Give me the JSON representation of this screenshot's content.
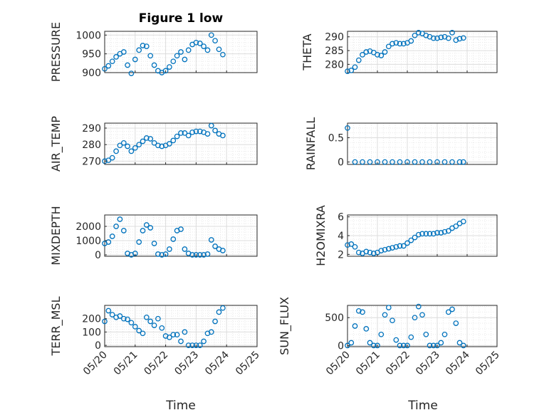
{
  "figure": {
    "title": "Figure 1 low",
    "x_axis_label": "Time",
    "date_ticks": [
      "05/20",
      "05/21",
      "05/22",
      "05/23",
      "05/24",
      "05/25"
    ],
    "marker_color": "#0072BD"
  },
  "chart_data": [
    {
      "type": "scatter",
      "title": "Figure 1 low",
      "ylabel": "PRESSURE",
      "xlabel": "",
      "xlim": [
        "2024-05-20",
        "2024-05-25"
      ],
      "ylim": [
        900,
        1010
      ],
      "yticks": [
        900,
        950,
        1000
      ],
      "x": [
        "05/20 00:00",
        "05/20 03:00",
        "05/20 06:00",
        "05/20 09:00",
        "05/20 12:00",
        "05/20 15:00",
        "05/20 18:00",
        "05/20 21:00",
        "05/21 00:00",
        "05/21 03:00",
        "05/21 06:00",
        "05/21 09:00",
        "05/21 12:00",
        "05/21 15:00",
        "05/21 18:00",
        "05/21 21:00",
        "05/22 00:00",
        "05/22 03:00",
        "05/22 06:00",
        "05/22 09:00",
        "05/22 12:00",
        "05/22 15:00",
        "05/22 18:00",
        "05/22 21:00",
        "05/23 00:00",
        "05/23 03:00",
        "05/23 06:00",
        "05/23 09:00",
        "05/23 12:00",
        "05/23 15:00",
        "05/23 18:00",
        "05/23 21:00"
      ],
      "y": [
        910,
        918,
        930,
        942,
        950,
        955,
        920,
        898,
        935,
        960,
        972,
        970,
        945,
        920,
        905,
        900,
        905,
        915,
        930,
        945,
        955,
        935,
        960,
        975,
        980,
        978,
        970,
        960,
        1000,
        985,
        962,
        948
      ]
    },
    {
      "type": "scatter",
      "ylabel": "THETA",
      "xlabel": "",
      "xlim": [
        "2024-05-20",
        "2024-05-25"
      ],
      "ylim": [
        277,
        292
      ],
      "yticks": [
        280,
        285,
        290
      ],
      "x": [
        "05/20 00:00",
        "05/20 03:00",
        "05/20 06:00",
        "05/20 09:00",
        "05/20 12:00",
        "05/20 15:00",
        "05/20 18:00",
        "05/20 21:00",
        "05/21 00:00",
        "05/21 03:00",
        "05/21 06:00",
        "05/21 09:00",
        "05/21 12:00",
        "05/21 15:00",
        "05/21 18:00",
        "05/21 21:00",
        "05/22 00:00",
        "05/22 03:00",
        "05/22 06:00",
        "05/22 09:00",
        "05/22 12:00",
        "05/22 15:00",
        "05/22 18:00",
        "05/22 21:00",
        "05/23 00:00",
        "05/23 03:00",
        "05/23 06:00",
        "05/23 09:00",
        "05/23 12:00",
        "05/23 15:00",
        "05/23 18:00",
        "05/23 21:00"
      ],
      "y": [
        277.5,
        277.8,
        279,
        281.5,
        283.5,
        284.5,
        284.8,
        284.3,
        283.5,
        283.2,
        284.5,
        286.5,
        287.5,
        287.8,
        287.5,
        287.5,
        287.8,
        288.5,
        290.5,
        291.5,
        291.2,
        290.5,
        290,
        289.5,
        289.5,
        289.8,
        290,
        289.5,
        291.5,
        288.8,
        289.3,
        289.6
      ]
    },
    {
      "type": "scatter",
      "ylabel": "AIR_TEMP",
      "xlabel": "",
      "xlim": [
        "2024-05-20",
        "2024-05-25"
      ],
      "ylim": [
        268,
        293
      ],
      "yticks": [
        270,
        280,
        290
      ],
      "x": [
        "05/20 00:00",
        "05/20 03:00",
        "05/20 06:00",
        "05/20 09:00",
        "05/20 12:00",
        "05/20 15:00",
        "05/20 18:00",
        "05/20 21:00",
        "05/21 00:00",
        "05/21 03:00",
        "05/21 06:00",
        "05/21 09:00",
        "05/21 12:00",
        "05/21 15:00",
        "05/21 18:00",
        "05/21 21:00",
        "05/22 00:00",
        "05/22 03:00",
        "05/22 06:00",
        "05/22 09:00",
        "05/22 12:00",
        "05/22 15:00",
        "05/22 18:00",
        "05/22 21:00",
        "05/23 00:00",
        "05/23 03:00",
        "05/23 06:00",
        "05/23 09:00",
        "05/23 12:00",
        "05/23 15:00",
        "05/23 18:00",
        "05/23 21:00"
      ],
      "y": [
        270,
        270.5,
        272,
        276,
        279.5,
        281,
        279,
        276,
        278,
        280,
        282,
        284,
        283.5,
        281,
        279.5,
        279,
        279.5,
        280.5,
        282.5,
        285,
        287,
        287,
        285.5,
        287.5,
        288,
        288,
        287.5,
        286.5,
        291.5,
        288.5,
        286.5,
        285.5
      ]
    },
    {
      "type": "scatter",
      "ylabel": "RAINFALL",
      "xlabel": "",
      "xlim": [
        "2024-05-20",
        "2024-05-25"
      ],
      "ylim": [
        -0.05,
        0.8
      ],
      "yticks": [
        0,
        0.5
      ],
      "x": [
        "05/20 00:00",
        "05/20 06:00",
        "05/20 12:00",
        "05/20 18:00",
        "05/21 00:00",
        "05/21 06:00",
        "05/21 12:00",
        "05/21 18:00",
        "05/22 00:00",
        "05/22 06:00",
        "05/22 12:00",
        "05/22 18:00",
        "05/23 00:00",
        "05/23 06:00",
        "05/23 12:00",
        "05/23 18:00",
        "05/23 21:00"
      ],
      "y": [
        0.7,
        0,
        0,
        0,
        0,
        0,
        0,
        0,
        0,
        0,
        0,
        0,
        0,
        0,
        0,
        0,
        0
      ]
    },
    {
      "type": "scatter",
      "ylabel": "MIXDEPTH",
      "xlabel": "",
      "xlim": [
        "2024-05-20",
        "2024-05-25"
      ],
      "ylim": [
        -100,
        2800
      ],
      "yticks": [
        0,
        1000,
        2000
      ],
      "x": [
        "05/20 00:00",
        "05/20 03:00",
        "05/20 06:00",
        "05/20 09:00",
        "05/20 12:00",
        "05/20 15:00",
        "05/20 18:00",
        "05/20 21:00",
        "05/21 00:00",
        "05/21 03:00",
        "05/21 06:00",
        "05/21 09:00",
        "05/21 12:00",
        "05/21 15:00",
        "05/21 18:00",
        "05/21 21:00",
        "05/22 00:00",
        "05/22 03:00",
        "05/22 06:00",
        "05/22 09:00",
        "05/22 12:00",
        "05/22 15:00",
        "05/22 18:00",
        "05/22 21:00",
        "05/23 00:00",
        "05/23 03:00",
        "05/23 06:00",
        "05/23 09:00",
        "05/23 12:00",
        "05/23 15:00",
        "05/23 18:00",
        "05/23 21:00"
      ],
      "y": [
        800,
        900,
        1300,
        2000,
        2500,
        1700,
        100,
        0,
        100,
        900,
        1700,
        2100,
        1900,
        800,
        50,
        0,
        50,
        400,
        1100,
        1700,
        1800,
        400,
        100,
        0,
        0,
        0,
        0,
        50,
        1050,
        600,
        400,
        300
      ]
    },
    {
      "type": "scatter",
      "ylabel": "H2OMIXRA",
      "xlabel": "",
      "xlim": [
        "2024-05-20",
        "2024-05-25"
      ],
      "ylim": [
        1.8,
        6.2
      ],
      "yticks": [
        2,
        4,
        6
      ],
      "x": [
        "05/20 00:00",
        "05/20 03:00",
        "05/20 06:00",
        "05/20 09:00",
        "05/20 12:00",
        "05/20 15:00",
        "05/20 18:00",
        "05/20 21:00",
        "05/21 00:00",
        "05/21 03:00",
        "05/21 06:00",
        "05/21 09:00",
        "05/21 12:00",
        "05/21 15:00",
        "05/21 18:00",
        "05/21 21:00",
        "05/22 00:00",
        "05/22 03:00",
        "05/22 06:00",
        "05/22 09:00",
        "05/22 12:00",
        "05/22 15:00",
        "05/22 18:00",
        "05/22 21:00",
        "05/23 00:00",
        "05/23 03:00",
        "05/23 06:00",
        "05/23 09:00",
        "05/23 12:00",
        "05/23 15:00",
        "05/23 18:00",
        "05/23 21:00"
      ],
      "y": [
        3,
        3.1,
        2.8,
        2.2,
        2.1,
        2.3,
        2.2,
        2.1,
        2.2,
        2.4,
        2.5,
        2.6,
        2.7,
        2.8,
        2.9,
        2.9,
        3.2,
        3.5,
        3.8,
        4.1,
        4.2,
        4.2,
        4.2,
        4.2,
        4.3,
        4.3,
        4.4,
        4.5,
        4.8,
        5,
        5.3,
        5.5
      ]
    },
    {
      "type": "scatter",
      "ylabel": "TERR_MSL",
      "xlabel": "Time",
      "xlim": [
        "2024-05-20",
        "2024-05-25"
      ],
      "ylim": [
        -10,
        300
      ],
      "yticks": [
        0,
        100,
        200
      ],
      "x": [
        "05/20 00:00",
        "05/20 03:00",
        "05/20 06:00",
        "05/20 09:00",
        "05/20 12:00",
        "05/20 15:00",
        "05/20 18:00",
        "05/20 21:00",
        "05/21 00:00",
        "05/21 03:00",
        "05/21 06:00",
        "05/21 09:00",
        "05/21 12:00",
        "05/21 15:00",
        "05/21 18:00",
        "05/21 21:00",
        "05/22 00:00",
        "05/22 03:00",
        "05/22 06:00",
        "05/22 09:00",
        "05/22 12:00",
        "05/22 15:00",
        "05/22 18:00",
        "05/22 21:00",
        "05/23 00:00",
        "05/23 03:00",
        "05/23 06:00",
        "05/23 09:00",
        "05/23 12:00",
        "05/23 15:00",
        "05/23 18:00",
        "05/23 21:00"
      ],
      "y": [
        180,
        260,
        230,
        210,
        220,
        200,
        195,
        170,
        140,
        110,
        90,
        210,
        180,
        150,
        200,
        130,
        70,
        60,
        80,
        80,
        30,
        100,
        0,
        0,
        0,
        0,
        30,
        90,
        100,
        180,
        250,
        280
      ]
    },
    {
      "type": "scatter",
      "ylabel": "SUN_FLUX",
      "xlabel": "Time",
      "xlim": [
        "2024-05-20",
        "2024-05-25"
      ],
      "ylim": [
        -20,
        720
      ],
      "yticks": [
        0,
        500
      ],
      "x": [
        "05/20 00:00",
        "05/20 03:00",
        "05/20 06:00",
        "05/20 09:00",
        "05/20 12:00",
        "05/20 15:00",
        "05/20 18:00",
        "05/20 21:00",
        "05/21 00:00",
        "05/21 03:00",
        "05/21 06:00",
        "05/21 09:00",
        "05/21 12:00",
        "05/21 15:00",
        "05/21 18:00",
        "05/21 21:00",
        "05/22 00:00",
        "05/22 03:00",
        "05/22 06:00",
        "05/22 09:00",
        "05/22 12:00",
        "05/22 15:00",
        "05/22 18:00",
        "05/22 21:00",
        "05/23 00:00",
        "05/23 03:00",
        "05/23 06:00",
        "05/23 09:00",
        "05/23 12:00",
        "05/23 15:00",
        "05/23 18:00",
        "05/23 21:00"
      ],
      "y": [
        0,
        50,
        350,
        620,
        600,
        300,
        50,
        0,
        0,
        200,
        550,
        680,
        450,
        100,
        0,
        0,
        0,
        150,
        500,
        700,
        550,
        200,
        0,
        0,
        0,
        50,
        200,
        600,
        650,
        400,
        50,
        0
      ]
    }
  ]
}
